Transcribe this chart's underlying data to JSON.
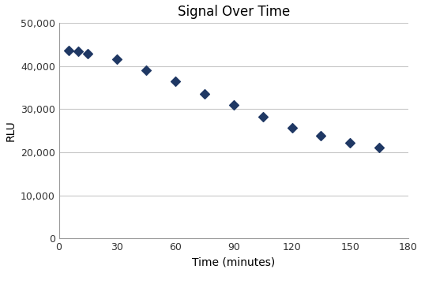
{
  "title": "Signal Over Time",
  "xlabel": "Time (minutes)",
  "ylabel": "RLU",
  "x_values": [
    5,
    10,
    15,
    30,
    45,
    60,
    75,
    90,
    105,
    120,
    135,
    150,
    165
  ],
  "y_values": [
    43500,
    43300,
    42800,
    41500,
    39000,
    36500,
    33500,
    31000,
    28200,
    25700,
    23800,
    22200,
    21000
  ],
  "xlim": [
    0,
    180
  ],
  "ylim": [
    0,
    50000
  ],
  "xticks": [
    0,
    30,
    60,
    90,
    120,
    150,
    180
  ],
  "yticks": [
    0,
    10000,
    20000,
    30000,
    40000,
    50000
  ],
  "marker_color": "#1F3864",
  "marker": "D",
  "marker_size": 6,
  "bg_color": "#ffffff",
  "grid_color": "#c8c8c8",
  "title_fontsize": 12,
  "label_fontsize": 10,
  "tick_fontsize": 9
}
